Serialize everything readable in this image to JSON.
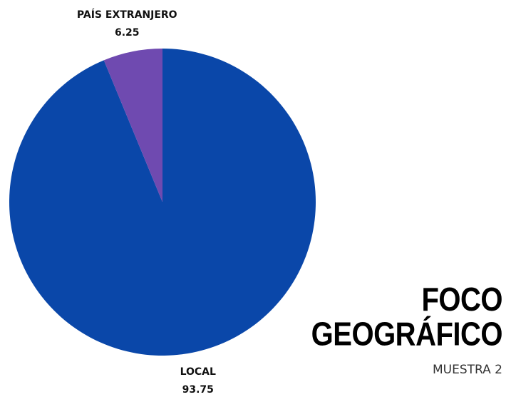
{
  "chart_data": {
    "type": "pie",
    "title": "FOCO GEOGRÁFICO",
    "subtitle": "MUESTRA 2",
    "categories": [
      "LOCAL",
      "PAÍS EXTRANJERO"
    ],
    "values": [
      93.75,
      6.25
    ],
    "colors": [
      "#0a47a9",
      "#6f4ab0"
    ]
  }
}
